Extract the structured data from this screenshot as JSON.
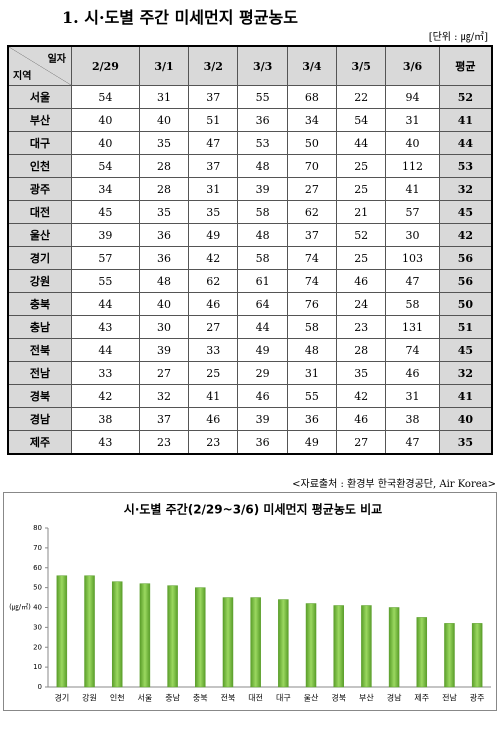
{
  "title": "1. 시·도별 주간 미세먼지 평균농도",
  "unit": "[단위 : ㎍/㎥]",
  "table": {
    "corner_top": "일자",
    "corner_bottom": "지역",
    "columns": [
      "2/29",
      "3/1",
      "3/2",
      "3/3",
      "3/4",
      "3/5",
      "3/6",
      "평균"
    ],
    "rows": [
      {
        "region": "서울",
        "values": [
          54,
          31,
          37,
          55,
          68,
          22,
          94,
          52
        ]
      },
      {
        "region": "부산",
        "values": [
          40,
          40,
          51,
          36,
          34,
          54,
          31,
          41
        ]
      },
      {
        "region": "대구",
        "values": [
          40,
          35,
          47,
          53,
          50,
          44,
          40,
          44
        ]
      },
      {
        "region": "인천",
        "values": [
          54,
          28,
          37,
          48,
          70,
          25,
          112,
          53
        ]
      },
      {
        "region": "광주",
        "values": [
          34,
          28,
          31,
          39,
          27,
          25,
          41,
          32
        ]
      },
      {
        "region": "대전",
        "values": [
          45,
          35,
          35,
          58,
          62,
          21,
          57,
          45
        ]
      },
      {
        "region": "울산",
        "values": [
          39,
          36,
          49,
          48,
          37,
          52,
          30,
          42
        ]
      },
      {
        "region": "경기",
        "values": [
          57,
          36,
          42,
          58,
          74,
          25,
          103,
          56
        ]
      },
      {
        "region": "강원",
        "values": [
          55,
          48,
          62,
          61,
          74,
          46,
          47,
          56
        ]
      },
      {
        "region": "충북",
        "values": [
          44,
          40,
          46,
          64,
          76,
          24,
          58,
          50
        ]
      },
      {
        "region": "충남",
        "values": [
          43,
          30,
          27,
          44,
          58,
          23,
          131,
          51
        ]
      },
      {
        "region": "전북",
        "values": [
          44,
          39,
          33,
          49,
          48,
          28,
          74,
          45
        ]
      },
      {
        "region": "전남",
        "values": [
          33,
          27,
          25,
          29,
          31,
          35,
          46,
          32
        ]
      },
      {
        "region": "경북",
        "values": [
          42,
          32,
          41,
          46,
          55,
          42,
          31,
          41
        ]
      },
      {
        "region": "경남",
        "values": [
          38,
          37,
          46,
          39,
          36,
          46,
          38,
          40
        ]
      },
      {
        "region": "제주",
        "values": [
          43,
          23,
          23,
          36,
          49,
          27,
          47,
          35
        ]
      }
    ]
  },
  "source": "<자료출처 : 환경부 한국환경공단, Air Korea>",
  "chart_data": {
    "type": "bar",
    "title": "시·도별 주간(2/29~3/6) 미세먼지 평균농도 비교",
    "y_label": "(㎍/㎥)",
    "categories": [
      "경기",
      "강원",
      "인천",
      "서울",
      "충남",
      "충북",
      "전북",
      "대전",
      "대구",
      "울산",
      "경북",
      "부산",
      "경남",
      "제주",
      "전남",
      "광주"
    ],
    "values": [
      56,
      56,
      53,
      52,
      51,
      50,
      45,
      45,
      44,
      42,
      41,
      41,
      40,
      35,
      32,
      32
    ],
    "color": "#7dc242",
    "ylim": [
      0,
      80
    ],
    "yticks": [
      0,
      10,
      20,
      30,
      40,
      50,
      60,
      70,
      80
    ]
  }
}
